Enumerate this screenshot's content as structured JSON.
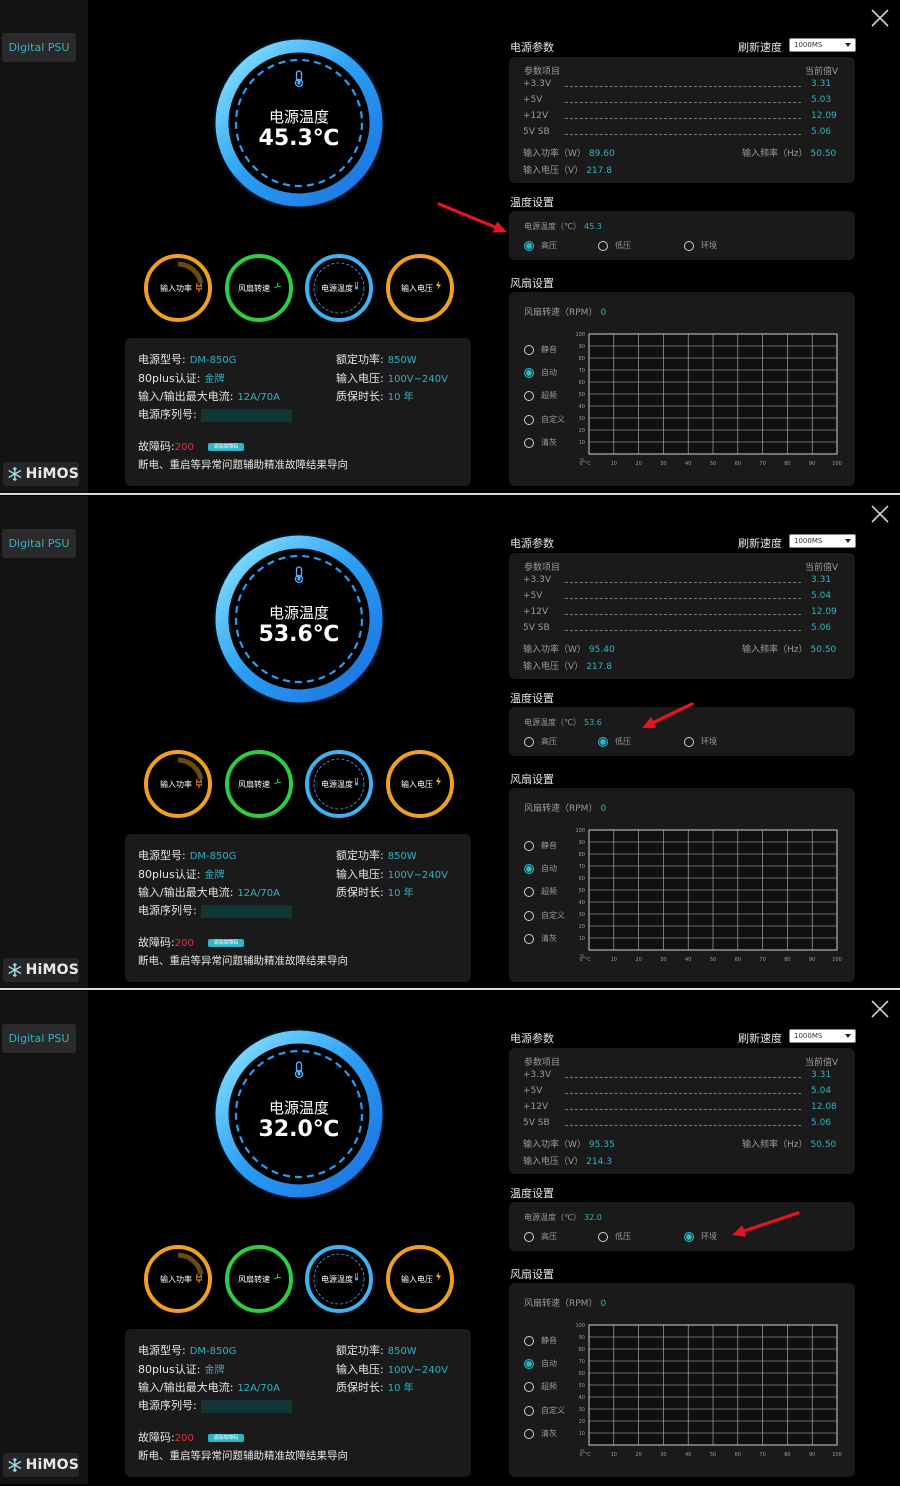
{
  "app": {
    "nav_item": "Digital PSU",
    "logo_text": "HiMOS"
  },
  "colors": {
    "accent": "#2fb4c6",
    "fault": "#e0323c",
    "gauge_blue": "#2a9df4",
    "ring_orange": "#f0a020",
    "ring_green": "#2ecc40",
    "arrow_red": "#e8141e"
  },
  "panels": [
    {
      "gauge": {
        "title": "电源温度",
        "value": "45.3℃"
      },
      "mini_gauges": [
        "输入功率",
        "风扇转速",
        "电源温度",
        "输入电压"
      ],
      "info": {
        "model_label": "电源型号:",
        "model_value": "DM-850G",
        "rated_label": "额定功率:",
        "rated_value": "850W",
        "cert_label": "80plus认证:",
        "cert_value": "金牌",
        "voltage_label": "输入电压:",
        "voltage_value": "100V~240V",
        "current_label": "输入/输出最大电流:",
        "current_value": "12A/70A",
        "warranty_label": "质保时长:",
        "warranty_value": "10 年",
        "serial_label": "电源序列号:",
        "fault_label": "故障码:",
        "fault_value": "200",
        "clear_button": "清除故障码",
        "note": "断电、重启等异常问题辅助精准故障结果导向"
      },
      "params": {
        "section_title": "电源参数",
        "refresh_label": "刷新速度",
        "refresh_value": "1000MS",
        "col_item": "参数项目",
        "col_value": "当前值V",
        "rows": [
          {
            "name": "+3.3V",
            "value": "3.31"
          },
          {
            "name": "+5V",
            "value": "5.03"
          },
          {
            "name": "+12V",
            "value": "12.09"
          },
          {
            "name": "5V SB",
            "value": "5.06"
          }
        ],
        "power_label": "输入功率（W）",
        "power_value": "89.60",
        "freq_label": "输入频率（Hz）",
        "freq_value": "50.50",
        "input_v_label": "输入电压（V）",
        "input_v_value": "217.8"
      },
      "temp_settings": {
        "section_title": "温度设置",
        "temp_label": "电源温度（℃）",
        "temp_value": "45.3",
        "options": [
          "高压",
          "低压",
          "环境"
        ],
        "selected": 0
      },
      "fan_settings": {
        "section_title": "风扇设置",
        "rpm_label": "风扇转速（RPM）",
        "rpm_value": "0",
        "modes": [
          "静音",
          "自动",
          "超频",
          "自定义",
          "清灰"
        ],
        "selected": 1
      }
    },
    {
      "gauge": {
        "title": "电源温度",
        "value": "53.6℃"
      },
      "mini_gauges": [
        "输入功率",
        "风扇转速",
        "电源温度",
        "输入电压"
      ],
      "info": {
        "model_label": "电源型号:",
        "model_value": "DM-850G",
        "rated_label": "额定功率:",
        "rated_value": "850W",
        "cert_label": "80plus认证:",
        "cert_value": "金牌",
        "voltage_label": "输入电压:",
        "voltage_value": "100V~240V",
        "current_label": "输入/输出最大电流:",
        "current_value": "12A/70A",
        "warranty_label": "质保时长:",
        "warranty_value": "10 年",
        "serial_label": "电源序列号:",
        "fault_label": "故障码:",
        "fault_value": "200",
        "clear_button": "清除故障码",
        "note": "断电、重启等异常问题辅助精准故障结果导向"
      },
      "params": {
        "section_title": "电源参数",
        "refresh_label": "刷新速度",
        "refresh_value": "1000MS",
        "col_item": "参数项目",
        "col_value": "当前值V",
        "rows": [
          {
            "name": "+3.3V",
            "value": "3.31"
          },
          {
            "name": "+5V",
            "value": "5.04"
          },
          {
            "name": "+12V",
            "value": "12.09"
          },
          {
            "name": "5V SB",
            "value": "5.06"
          }
        ],
        "power_label": "输入功率（W）",
        "power_value": "95.40",
        "freq_label": "输入频率（Hz）",
        "freq_value": "50.50",
        "input_v_label": "输入电压（V）",
        "input_v_value": "217.8"
      },
      "temp_settings": {
        "section_title": "温度设置",
        "temp_label": "电源温度（℃）",
        "temp_value": "53.6",
        "options": [
          "高压",
          "低压",
          "环境"
        ],
        "selected": 1
      },
      "fan_settings": {
        "section_title": "风扇设置",
        "rpm_label": "风扇转速（RPM）",
        "rpm_value": "0",
        "modes": [
          "静音",
          "自动",
          "超频",
          "自定义",
          "清灰"
        ],
        "selected": 1
      }
    },
    {
      "gauge": {
        "title": "电源温度",
        "value": "32.0℃"
      },
      "mini_gauges": [
        "输入功率",
        "风扇转速",
        "电源温度",
        "输入电压"
      ],
      "info": {
        "model_label": "电源型号:",
        "model_value": "DM-850G",
        "rated_label": "额定功率:",
        "rated_value": "850W",
        "cert_label": "80plus认证:",
        "cert_value": "金牌",
        "voltage_label": "输入电压:",
        "voltage_value": "100V~240V",
        "current_label": "输入/输出最大电流:",
        "current_value": "12A/70A",
        "warranty_label": "质保时长:",
        "warranty_value": "10 年",
        "serial_label": "电源序列号:",
        "fault_label": "故障码:",
        "fault_value": "200",
        "clear_button": "清除故障码",
        "note": "断电、重启等异常问题辅助精准故障结果导向"
      },
      "params": {
        "section_title": "电源参数",
        "refresh_label": "刷新速度",
        "refresh_value": "1000MS",
        "col_item": "参数项目",
        "col_value": "当前值V",
        "rows": [
          {
            "name": "+3.3V",
            "value": "3.31"
          },
          {
            "name": "+5V",
            "value": "5.04"
          },
          {
            "name": "+12V",
            "value": "12.08"
          },
          {
            "name": "5V SB",
            "value": "5.06"
          }
        ],
        "power_label": "输入功率（W）",
        "power_value": "95.35",
        "freq_label": "输入频率（Hz）",
        "freq_value": "50.50",
        "input_v_label": "输入电压（V）",
        "input_v_value": "214.3"
      },
      "temp_settings": {
        "section_title": "温度设置",
        "temp_label": "电源温度（℃）",
        "temp_value": "32.0",
        "options": [
          "高压",
          "低压",
          "环境"
        ],
        "selected": 2
      },
      "fan_settings": {
        "section_title": "风扇设置",
        "rpm_label": "风扇转速（RPM）",
        "rpm_value": "0",
        "modes": [
          "静音",
          "自动",
          "超频",
          "自定义",
          "清灰"
        ],
        "selected": 1
      }
    }
  ],
  "fan_chart": {
    "y_ticks": [
      "100",
      "90",
      "80",
      "70",
      "60",
      "50",
      "40",
      "30",
      "20",
      "10",
      "%"
    ],
    "x_ticks": [
      "0",
      "℃",
      "10",
      "20",
      "30",
      "40",
      "50",
      "60",
      "70",
      "80",
      "90",
      "100"
    ]
  }
}
